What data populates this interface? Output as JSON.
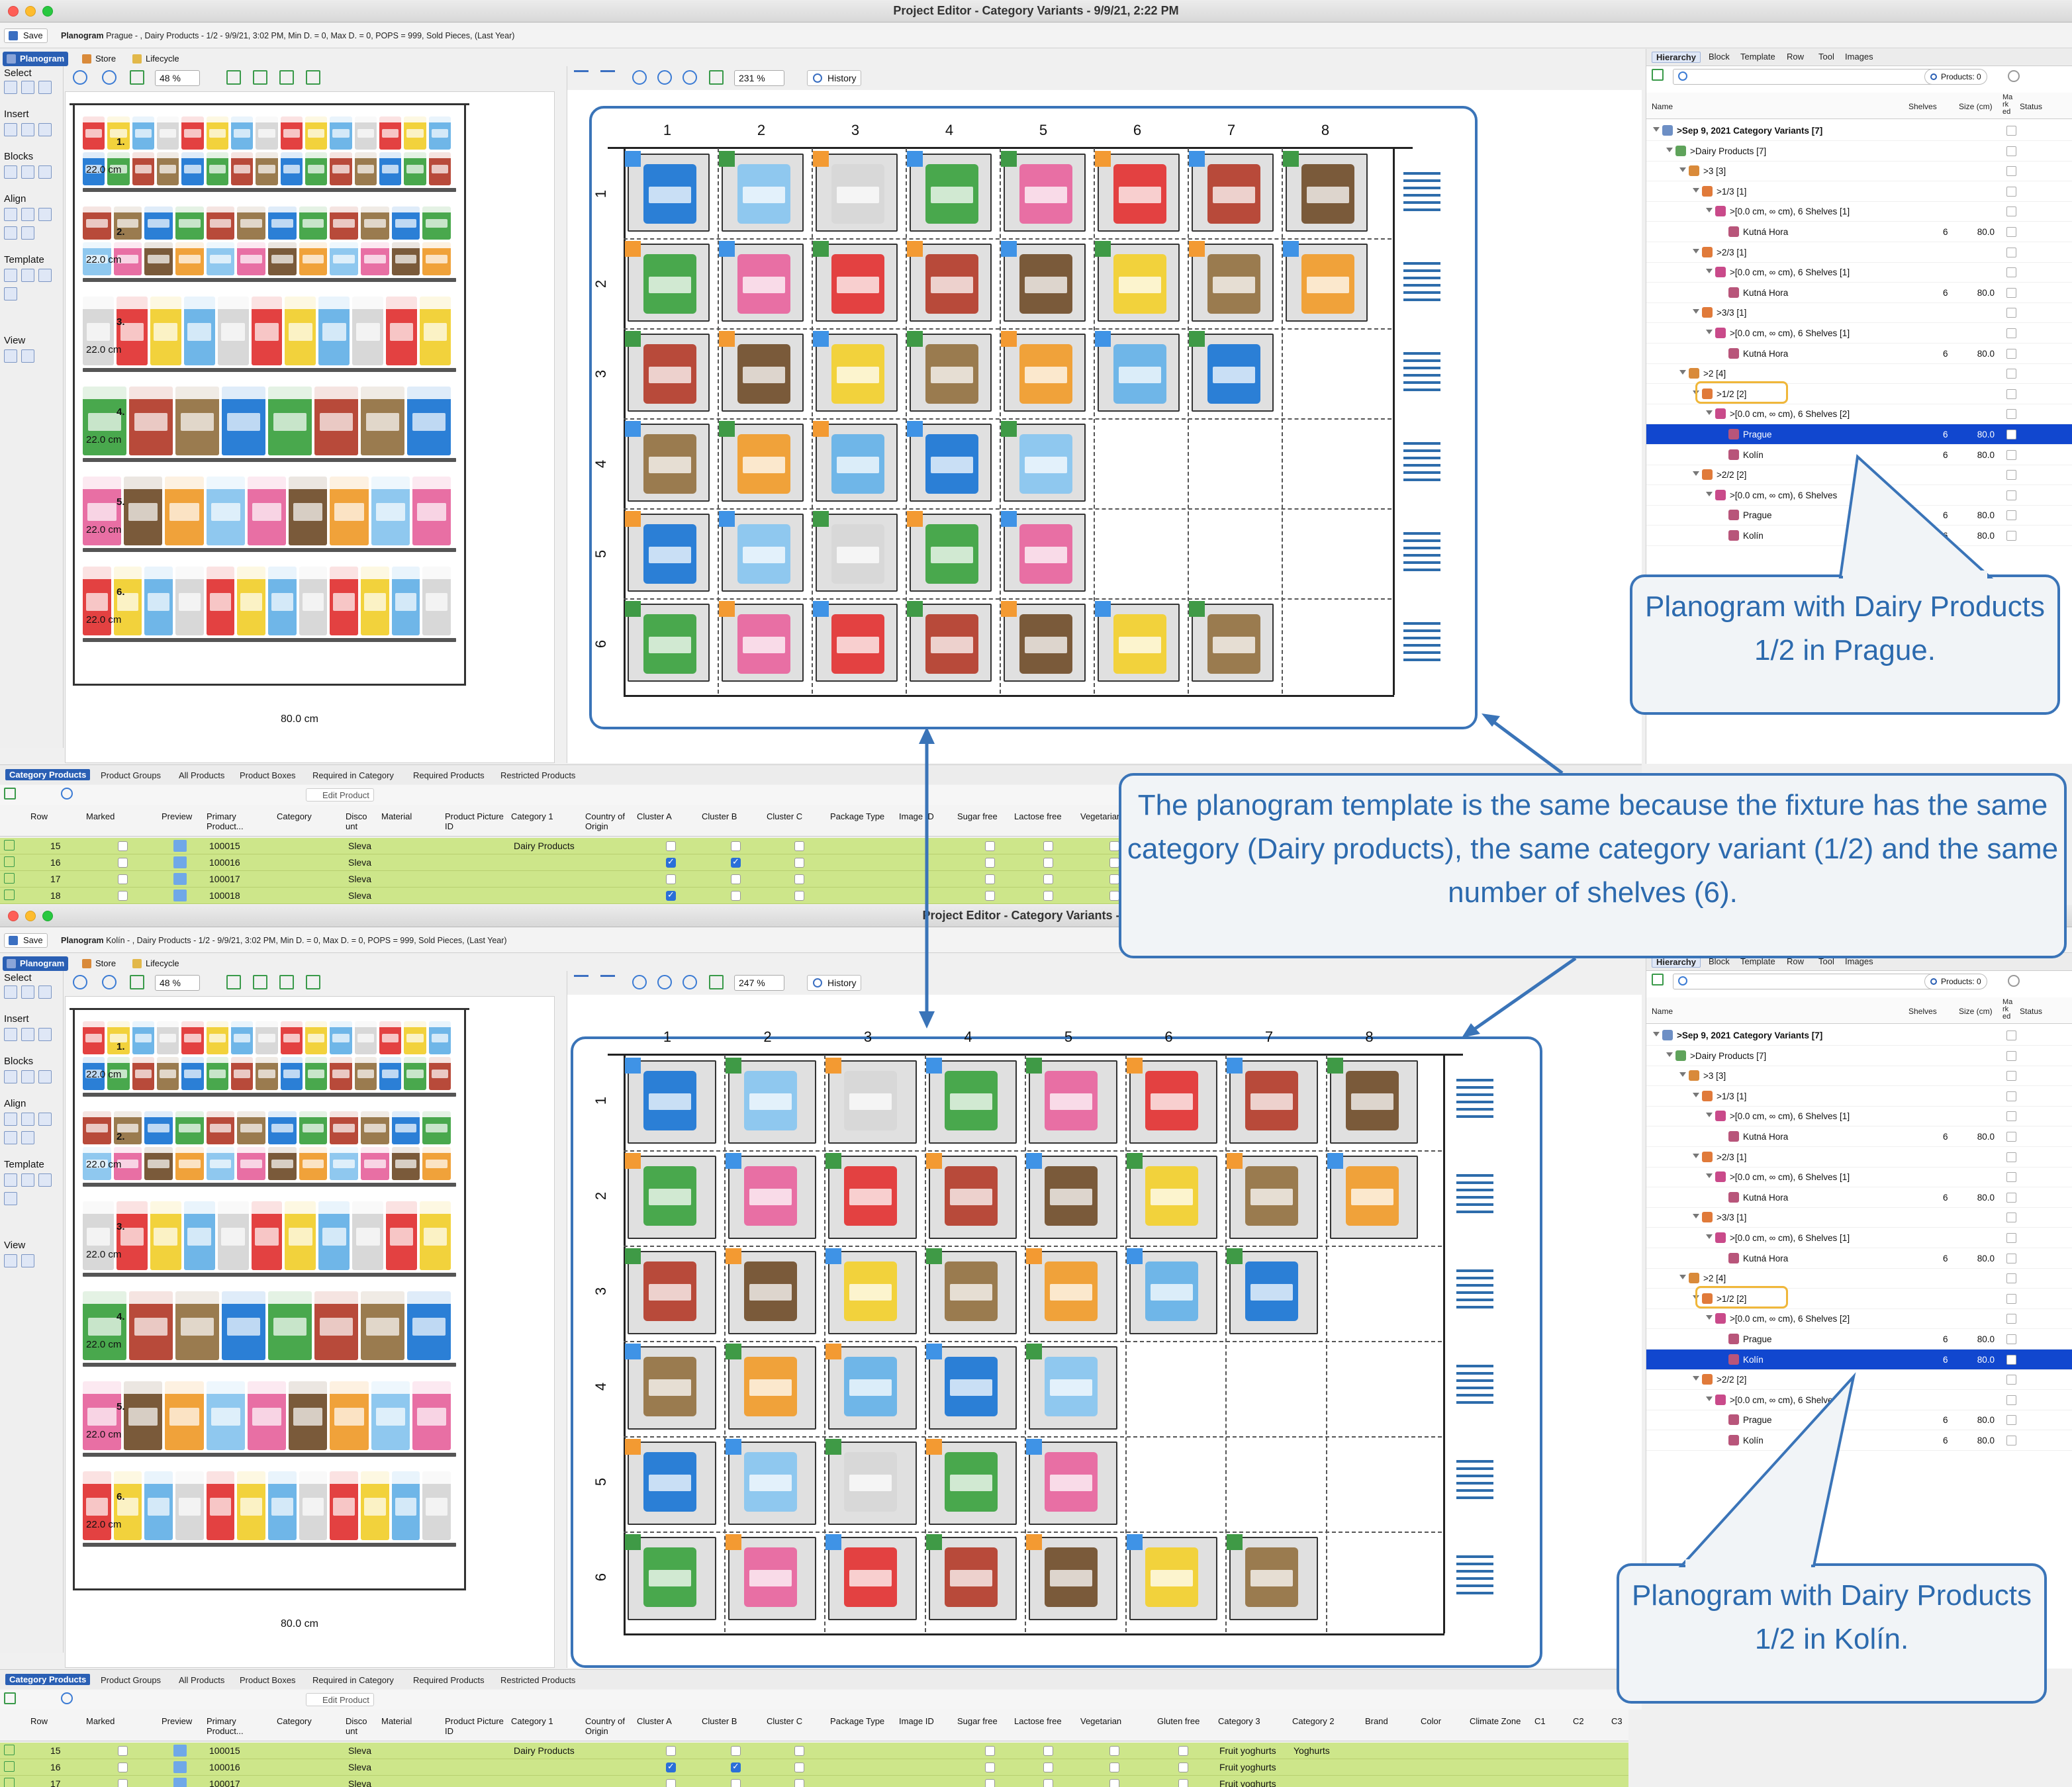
{
  "windows": [
    {
      "id": "A",
      "title": "Project Editor - Category Variants - 9/9/21, 2:22 PM",
      "save_label": "Save",
      "info_bold": "Planogram",
      "info_text": "Prague - , Dairy Products - 1/2 - 9/9/21, 3:02 PM, Min D. = 0, Max D. = 0, POPS = 999, Sold Pieces, (Last Year)",
      "modes": [
        "Planogram",
        "Store",
        "Lifecycle"
      ],
      "left_zoom": "48 %",
      "right_zoom": "231 %",
      "history": "History",
      "store_selected": "Prague"
    },
    {
      "id": "B",
      "title": "Project Editor - Category Variants - 9/9/2",
      "save_label": "Save",
      "info_bold": "Planogram",
      "info_text": "Kolín - , Dairy Products - 1/2 - 9/9/21, 3:02 PM, Min D. = 0, Max D. = 0, POPS = 999, Sold Pieces, (Last Year)",
      "modes": [
        "Planogram",
        "Store",
        "Lifecycle"
      ],
      "left_zoom": "48 %",
      "right_zoom": "247 %",
      "history": "History",
      "store_selected": "Kolín"
    }
  ],
  "palette": {
    "select": "Select",
    "insert": "Insert",
    "blocks": "Blocks",
    "align": "Align",
    "template": "Template",
    "view": "View"
  },
  "fixture": {
    "shelf_numbers": [
      "1.",
      "2.",
      "3.",
      "4.",
      "5.",
      "6."
    ],
    "shelf_height": "22.0 cm",
    "width_label": "80.0 cm"
  },
  "grid": {
    "columns": [
      "1",
      "2",
      "3",
      "4",
      "5",
      "6",
      "7",
      "8"
    ],
    "rows": [
      "1",
      "2",
      "3",
      "4",
      "5",
      "6"
    ]
  },
  "hierarchy": {
    "tabs": [
      "Hierarchy",
      "Block",
      "Template",
      "Row",
      "Tool",
      "Images"
    ],
    "products_count": "Products: 0",
    "col_name": "Name",
    "col_shelves": "Shelves",
    "col_size": "Size (cm)",
    "col_marked": "Ma rk ed",
    "col_status": "Status",
    "rows": [
      {
        "label": ">Sep 9, 2021 Category Variants [7]",
        "indent": 0,
        "icon": "doc-icon",
        "bold": true
      },
      {
        "label": ">Dairy Products [7]",
        "indent": 1,
        "icon": "category-icon"
      },
      {
        "label": ">3 [3]",
        "indent": 2,
        "icon": "variant-icon"
      },
      {
        "label": ">1/3 [1]",
        "indent": 3,
        "icon": "fixture-icon"
      },
      {
        "label": ">[0.0 cm, ∞ cm), 6 Shelves [1]",
        "indent": 4,
        "icon": "shelf-range-icon"
      },
      {
        "label": "Kutná Hora",
        "indent": 5,
        "icon": "store-icon",
        "shelves": "6",
        "size": "80.0"
      },
      {
        "label": ">2/3 [1]",
        "indent": 3,
        "icon": "fixture-icon"
      },
      {
        "label": ">[0.0 cm, ∞ cm), 6 Shelves [1]",
        "indent": 4,
        "icon": "shelf-range-icon"
      },
      {
        "label": "Kutná Hora",
        "indent": 5,
        "icon": "store-icon",
        "shelves": "6",
        "size": "80.0"
      },
      {
        "label": ">3/3 [1]",
        "indent": 3,
        "icon": "fixture-icon"
      },
      {
        "label": ">[0.0 cm, ∞ cm), 6 Shelves [1]",
        "indent": 4,
        "icon": "shelf-range-icon"
      },
      {
        "label": "Kutná Hora",
        "indent": 5,
        "icon": "store-icon",
        "shelves": "6",
        "size": "80.0"
      },
      {
        "label": ">2 [4]",
        "indent": 2,
        "icon": "variant-icon"
      },
      {
        "label": ">1/2 [2]",
        "indent": 3,
        "icon": "fixture-icon",
        "highlight": true
      },
      {
        "label": ">[0.0 cm, ∞ cm), 6 Shelves [2]",
        "indent": 4,
        "icon": "shelf-range-icon"
      },
      {
        "label": "Prague",
        "indent": 5,
        "icon": "store-icon",
        "shelves": "6",
        "size": "80.0"
      },
      {
        "label": "Kolín",
        "indent": 5,
        "icon": "store-icon",
        "shelves": "6",
        "size": "80.0"
      },
      {
        "label": ">2/2 [2]",
        "indent": 3,
        "icon": "fixture-icon"
      },
      {
        "label": ">[0.0 cm, ∞ cm), 6 Shelves",
        "indent": 4,
        "icon": "shelf-range-icon"
      },
      {
        "label": "Prague",
        "indent": 5,
        "icon": "store-icon",
        "shelves": "6",
        "size": "80.0"
      },
      {
        "label": "Kolín",
        "indent": 5,
        "icon": "store-icon",
        "shelves": "6",
        "size": "80.0"
      }
    ]
  },
  "bottom_tabs": [
    "Category Products",
    "Product Groups",
    "All Products",
    "Product Boxes",
    "Required in Category",
    "Required Products",
    "Restricted Products"
  ],
  "edit_product": "Edit Product",
  "table": {
    "headers": [
      "Row",
      "Marked",
      "Preview",
      "Primary Product...",
      "Category",
      "Disco unt",
      "Material",
      "Product Picture ID",
      "Category 1",
      "Country of Origin",
      "Cluster A",
      "Cluster B",
      "Cluster C",
      "Package Type",
      "Image ID",
      "Sugar free",
      "Lactose free",
      "Vegetarian",
      "Gluten free",
      "Category 3",
      "Category 2",
      "Brand",
      "Color",
      "Climate Zone",
      "C1",
      "C2",
      "C3"
    ],
    "rows_A": [
      {
        "row": "15",
        "product": "100015",
        "discount": "Sleva",
        "category1": "Dairy Products",
        "clusterA": false,
        "clusterB": false
      },
      {
        "row": "16",
        "product": "100016",
        "discount": "Sleva",
        "category1": "",
        "clusterA": true,
        "clusterB": true
      },
      {
        "row": "17",
        "product": "100017",
        "discount": "Sleva",
        "category1": "",
        "clusterA": false,
        "clusterB": false
      },
      {
        "row": "18",
        "product": "100018",
        "discount": "Sleva",
        "category1": "",
        "clusterA": true,
        "clusterB": false
      }
    ],
    "rows_B": [
      {
        "row": "15",
        "product": "100015",
        "discount": "Sleva",
        "category1": "Dairy Products",
        "clusterA": false,
        "clusterB": false,
        "category3": "Fruit yoghurts",
        "category2": "Yoghurts"
      },
      {
        "row": "16",
        "product": "100016",
        "discount": "Sleva",
        "category1": "",
        "clusterA": true,
        "clusterB": true,
        "category3": "Fruit yoghurts",
        "category2": ""
      },
      {
        "row": "17",
        "product": "100017",
        "discount": "Sleva",
        "category1": "",
        "clusterA": false,
        "clusterB": false,
        "category3": "Fruit yoghurts",
        "category2": ""
      }
    ]
  },
  "callouts": {
    "prague": "Planogram with Dairy Products 1/2 in Prague.",
    "kolin": "Planogram with Dairy Products 1/2 in Kolín.",
    "center": "The planogram template is the same because the fixture has the same category (Dairy products), the same category variant (1/2) and the same number of shelves (6)."
  },
  "colors": {
    "accent": "#3a74b8",
    "selection": "#1147cf",
    "highlight": "#f0b73a",
    "table_row": "#cde68a"
  }
}
